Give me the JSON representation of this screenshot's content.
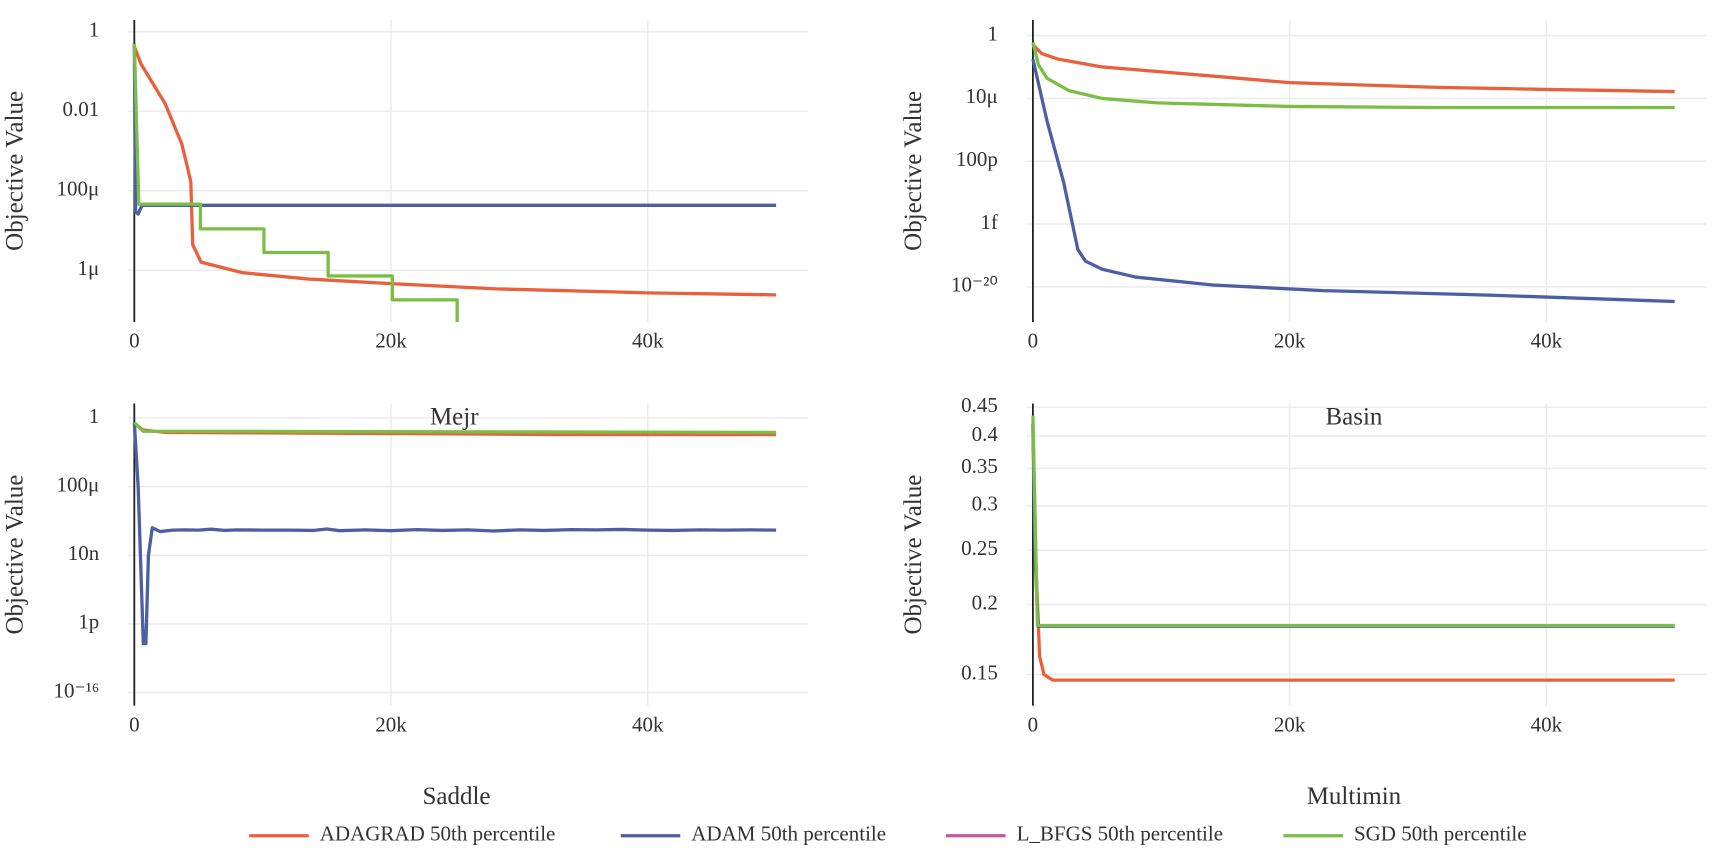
{
  "chart_data": [
    {
      "type": "line",
      "ylabel": "Objective Value",
      "yscale": "log",
      "grid": true,
      "xlim": [
        -500,
        52500
      ],
      "ylim": [
        5e-08,
        2
      ],
      "xticks": [
        0,
        {
          "value": 20000,
          "label": "20k"
        },
        {
          "value": 40000,
          "label": "40k"
        }
      ],
      "yticks": [
        1,
        0.01,
        {
          "value": 0.0001,
          "label": "100μ"
        },
        {
          "value": 1e-06,
          "label": "1μ"
        }
      ],
      "series": [
        {
          "name": "ADAGRAD 50th percentile",
          "color": "#e8603c",
          "x": [
            0,
            515,
            2400,
            3700,
            4100,
            4400,
            4550,
            5200,
            8400,
            13600,
            20000,
            28200,
            40000,
            50000
          ],
          "values": [
            0.43,
            0.156,
            0.0156,
            0.0015,
            0.00044,
            0.00017,
            4.4e-06,
            1.6e-06,
            8.7e-07,
            6e-07,
            4.6e-07,
            3.4e-07,
            2.7e-07,
            2.4e-07
          ]
        },
        {
          "name": "ADAM 50th percentile",
          "color": "#4c5fa3",
          "x": [
            0,
            100,
            300,
            600,
            50000
          ],
          "values": [
            0.5,
            3e-05,
            2.6e-05,
            4.3e-05,
            4.3e-05
          ]
        },
        {
          "name": "L_BFGS 50th percentile",
          "color": "#c8579b",
          "x": [],
          "values": []
        },
        {
          "name": "SGD 50th percentile",
          "color": "#7cbd45",
          "x": [
            0,
            350,
            5150,
            5150,
            10100,
            10100,
            15100,
            15100,
            20100,
            20100,
            25150,
            25150
          ],
          "values": [
            0.5,
            4.6e-05,
            4.6e-05,
            1.1e-05,
            1.1e-05,
            2.8e-06,
            2.8e-06,
            7.2e-07,
            7.2e-07,
            1.8e-07,
            1.8e-07,
            5e-08
          ]
        }
      ]
    },
    {
      "type": "line",
      "ylabel": "Objective Value",
      "yscale": "log",
      "grid": true,
      "xlim": [
        -500,
        52500
      ],
      "ylim": [
        1.6e-23,
        18
      ],
      "xticks": [
        0,
        {
          "value": 20000,
          "label": "20k"
        },
        {
          "value": 40000,
          "label": "40k"
        }
      ],
      "yticks": [
        1,
        {
          "value": 1e-05,
          "label": "10μ"
        },
        {
          "value": 1e-10,
          "label": "100p"
        },
        {
          "value": 1e-15,
          "label": "1f"
        },
        {
          "value": 1e-20,
          "label": "10⁻²⁰"
        }
      ],
      "series": [
        {
          "name": "ADAGRAD 50th percentile",
          "color": "#e8603c",
          "x": [
            0,
            690,
            1970,
            5400,
            9700,
            14000,
            20000,
            31200,
            40000,
            50000
          ],
          "values": [
            0.19,
            0.037,
            0.0133,
            0.0032,
            0.0014,
            0.0006,
            0.00018,
            7.7e-05,
            5.2e-05,
            3.5e-05
          ]
        },
        {
          "name": "ADAM 50th percentile",
          "color": "#4c5fa3",
          "x": [
            0,
            1100,
            2400,
            3500,
            4100,
            5400,
            8000,
            14000,
            22600,
            35500,
            50000
          ],
          "values": [
            0.0133,
            1.6e-07,
            2e-12,
            9.5e-18,
            1.1e-18,
            2.5e-19,
            6e-20,
            1.4e-20,
            5e-21,
            2.2e-21,
            6.8e-22
          ]
        },
        {
          "name": "L_BFGS 50th percentile",
          "color": "#c8579b",
          "x": [],
          "values": []
        },
        {
          "name": "SGD 50th percentile",
          "color": "#7cbd45",
          "x": [
            0,
            430,
            1100,
            2800,
            5400,
            9700,
            20000,
            31200,
            50000
          ],
          "values": [
            0.29,
            0.0048,
            0.0004,
            4.2e-05,
            1e-05,
            4.4e-06,
            2.3e-06,
            1.9e-06,
            1.9e-06
          ]
        }
      ]
    },
    {
      "type": "line",
      "ylabel": "Objective Value",
      "yscale": "log",
      "grid": true,
      "xlim": [
        -500,
        52500
      ],
      "ylim": [
        1.7e-17,
        7
      ],
      "xticks": [
        0,
        {
          "value": 20000,
          "label": "20k"
        },
        {
          "value": 40000,
          "label": "40k"
        }
      ],
      "yticks": [
        1,
        {
          "value": 0.0001,
          "label": "100μ"
        },
        {
          "value": 1e-08,
          "label": "10n"
        },
        {
          "value": 1e-12,
          "label": "1p"
        },
        {
          "value": 1e-16,
          "label": "10⁻¹⁶"
        }
      ],
      "series": [
        {
          "name": "ADAGRAD 50th percentile",
          "color": "#e8603c",
          "x": [
            0,
            690,
            2400,
            20000,
            33300,
            50000
          ],
          "values": [
            0.48,
            0.2,
            0.145,
            0.125,
            0.108,
            0.108
          ]
        },
        {
          "name": "ADAM 50th percentile",
          "color": "#4c5fa3",
          "x": [
            0,
            300,
            700,
            900,
            1100,
            1400,
            2000,
            3000,
            4000,
            5000,
            6000,
            7000,
            8000,
            10000,
            12000,
            14000,
            15000,
            16000,
            18000,
            20000,
            22000,
            24000,
            26000,
            28000,
            30000,
            32000,
            34000,
            36000,
            38000,
            40000,
            42000,
            44000,
            46000,
            48000,
            50000
          ],
          "values": [
            0.55,
            0.0001,
            7e-14,
            7e-14,
            1e-08,
            4e-07,
            2.4e-07,
            2.9e-07,
            3e-07,
            2.9e-07,
            3.3e-07,
            2.8e-07,
            3e-07,
            2.9e-07,
            2.9e-07,
            2.8e-07,
            3.4e-07,
            2.7e-07,
            3e-07,
            2.7e-07,
            3.1e-07,
            2.8e-07,
            3e-07,
            2.6e-07,
            3e-07,
            2.8e-07,
            3.1e-07,
            3e-07,
            3.2e-07,
            2.9e-07,
            2.8e-07,
            3e-07,
            2.9e-07,
            3e-07,
            2.9e-07
          ]
        },
        {
          "name": "L_BFGS 50th percentile",
          "color": "#c8579b",
          "x": [],
          "values": []
        },
        {
          "name": "SGD 50th percentile",
          "color": "#7cbd45",
          "x": [
            0,
            690,
            50000
          ],
          "values": [
            0.55,
            0.17,
            0.145
          ]
        }
      ]
    },
    {
      "type": "line",
      "ylabel": "Objective Value",
      "yscale": "log",
      "grid": true,
      "xlim": [
        -500,
        52500
      ],
      "ylim": [
        0.132,
        0.457
      ],
      "xticks": [
        0,
        {
          "value": 20000,
          "label": "20k"
        },
        {
          "value": 40000,
          "label": "40k"
        }
      ],
      "yticks": [
        0.15,
        0.2,
        0.25,
        0.3,
        0.35,
        0.4,
        0.45
      ],
      "series": [
        {
          "name": "ADAGRAD 50th percentile",
          "color": "#e8603c",
          "x": [
            0,
            260,
            520,
            860,
            1550,
            50000
          ],
          "values": [
            0.42,
            0.228,
            0.162,
            0.15,
            0.1466,
            0.1466
          ]
        },
        {
          "name": "ADAM 50th percentile",
          "color": "#4c5fa3",
          "x": [
            0,
            150,
            400,
            50000
          ],
          "values": [
            0.42,
            0.25,
            0.183,
            0.183
          ]
        },
        {
          "name": "L_BFGS 50th percentile",
          "color": "#c8579b",
          "x": [],
          "values": []
        },
        {
          "name": "SGD 50th percentile",
          "color": "#7cbd45",
          "x": [
            0,
            260,
            350,
            50000
          ],
          "values": [
            0.435,
            0.228,
            0.1835,
            0.1835
          ]
        }
      ]
    }
  ],
  "annotations": [
    "Mejr",
    "Basin",
    "Saddle",
    "Multimin"
  ],
  "legend": "bottom"
}
